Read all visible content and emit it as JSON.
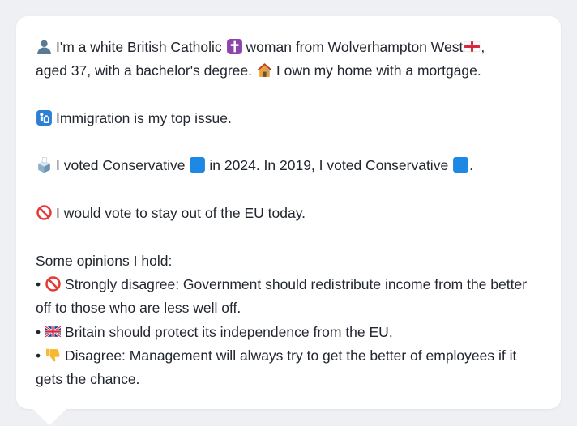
{
  "profile": {
    "intro_part1": "I'm a white British Catholic",
    "intro_part2": "woman from Wolverhampton West",
    "intro_part3": ",",
    "intro_line2": "aged 37, with a bachelor's degree.",
    "home_text": "I own my home with a mortgage.",
    "top_issue": "Immigration is my top issue.",
    "vote_part1": "I voted Conservative",
    "vote_part2": "in 2024. In 2019, I voted Conservative",
    "vote_part3": ".",
    "eu_text": "I would vote to stay out of the EU today.",
    "opinions_header": "Some opinions I hold:",
    "bullet": "•",
    "opinions": [
      {
        "icon": "prohibited-icon",
        "text": "Strongly disagree: Government should redistribute income from the better off to those who are less well off."
      },
      {
        "icon": "uk-flag-icon",
        "text": "Britain should protect its independence from the EU."
      },
      {
        "icon": "thumbs-down-icon",
        "text": "Disagree: Management will always try to get the better of employees if it gets the chance."
      }
    ]
  },
  "colors": {
    "background": "#eef0f4",
    "card": "#ffffff",
    "text": "#22262e",
    "conservative_blue": "#1e88e5",
    "prohibited_red": "#e53935",
    "cross_purple": "#8e44ad"
  }
}
